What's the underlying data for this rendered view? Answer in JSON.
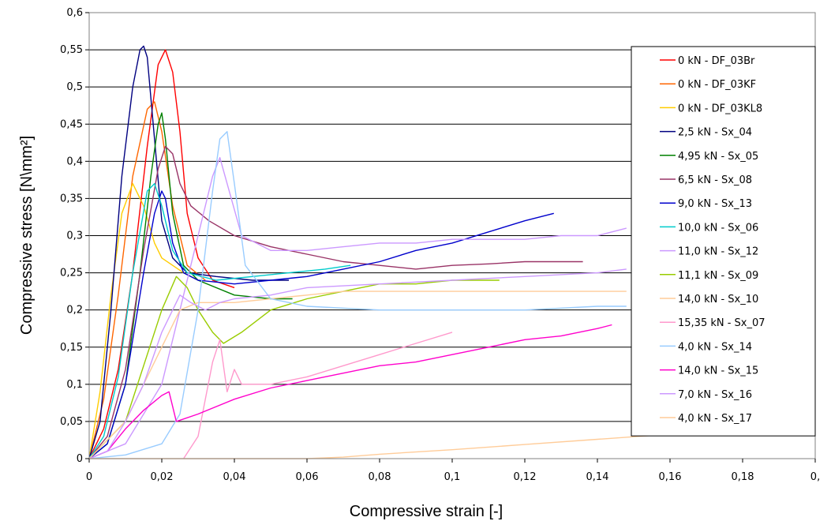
{
  "chart_data": {
    "type": "line",
    "xlabel": "Compressive strain [-]",
    "ylabel": "Compressive stress [N\\mm²]",
    "xlim": [
      0,
      0.2
    ],
    "ylim": [
      0,
      0.6
    ],
    "x_ticks": [
      "0",
      "0,02",
      "0,04",
      "0,06",
      "0,08",
      "0,1",
      "0,12",
      "0,14",
      "0,16",
      "0,18",
      "0,"
    ],
    "y_ticks": [
      "0",
      "0,05",
      "0,1",
      "0,15",
      "0,2",
      "0,25",
      "0,3",
      "0,35",
      "0,4",
      "0,45",
      "0,5",
      "0,55",
      "0,6"
    ],
    "grid": "horizontal major gridlines",
    "legend_position": "right, inside plot area",
    "series": [
      {
        "name": "0 kN - DF_03Br",
        "color": "#ff0000",
        "x": [
          0,
          0.004,
          0.008,
          0.012,
          0.016,
          0.019,
          0.021,
          0.023,
          0.025,
          0.027,
          0.03,
          0.034,
          0.04
        ],
        "y": [
          0,
          0.04,
          0.12,
          0.25,
          0.42,
          0.53,
          0.55,
          0.52,
          0.44,
          0.33,
          0.27,
          0.24,
          0.23
        ]
      },
      {
        "name": "0 kN - DF_03KF",
        "color": "#ff6600",
        "x": [
          0,
          0.004,
          0.008,
          0.012,
          0.016,
          0.018,
          0.02,
          0.023,
          0.027,
          0.032
        ],
        "y": [
          0,
          0.08,
          0.22,
          0.38,
          0.47,
          0.48,
          0.44,
          0.34,
          0.26,
          0.24
        ]
      },
      {
        "name": "0 kN - DF_03KL8",
        "color": "#ffcc00",
        "x": [
          0,
          0.003,
          0.006,
          0.009,
          0.012,
          0.015,
          0.018,
          0.02,
          0.023,
          0.026,
          0.03
        ],
        "y": [
          0,
          0.09,
          0.22,
          0.33,
          0.37,
          0.34,
          0.29,
          0.27,
          0.26,
          0.25,
          0.24
        ]
      },
      {
        "name": "2,5 kN - Sx_04",
        "color": "#000080",
        "x": [
          0,
          0.003,
          0.006,
          0.009,
          0.012,
          0.014,
          0.015,
          0.016,
          0.018,
          0.02,
          0.023,
          0.027,
          0.035,
          0.045,
          0.055
        ],
        "y": [
          0,
          0.05,
          0.2,
          0.38,
          0.5,
          0.55,
          0.555,
          0.54,
          0.43,
          0.32,
          0.27,
          0.25,
          0.245,
          0.24,
          0.24
        ]
      },
      {
        "name": "4,95 kN - Sx_05",
        "color": "#008000",
        "x": [
          0,
          0.005,
          0.01,
          0.014,
          0.017,
          0.019,
          0.02,
          0.021,
          0.023,
          0.026,
          0.03,
          0.04,
          0.05,
          0.056
        ],
        "y": [
          0,
          0.02,
          0.1,
          0.25,
          0.38,
          0.45,
          0.465,
          0.43,
          0.33,
          0.26,
          0.24,
          0.22,
          0.215,
          0.215
        ]
      },
      {
        "name": "6,5 kN - Sx_08",
        "color": "#993366",
        "x": [
          0,
          0.005,
          0.01,
          0.015,
          0.019,
          0.021,
          0.023,
          0.025,
          0.028,
          0.033,
          0.04,
          0.05,
          0.06,
          0.07,
          0.08,
          0.09,
          0.1,
          0.11,
          0.12,
          0.13,
          0.136
        ],
        "y": [
          0,
          0.03,
          0.12,
          0.28,
          0.39,
          0.42,
          0.41,
          0.37,
          0.34,
          0.32,
          0.3,
          0.285,
          0.275,
          0.265,
          0.26,
          0.255,
          0.26,
          0.262,
          0.265,
          0.265,
          0.265
        ]
      },
      {
        "name": "9,0 kN - Sx_13",
        "color": "#0000cc",
        "x": [
          0,
          0.005,
          0.01,
          0.015,
          0.018,
          0.02,
          0.021,
          0.023,
          0.026,
          0.03,
          0.04,
          0.05,
          0.06,
          0.07,
          0.08,
          0.09,
          0.1,
          0.11,
          0.12,
          0.128
        ],
        "y": [
          0,
          0.02,
          0.1,
          0.25,
          0.33,
          0.36,
          0.35,
          0.29,
          0.25,
          0.24,
          0.235,
          0.24,
          0.245,
          0.255,
          0.265,
          0.28,
          0.29,
          0.305,
          0.32,
          0.33
        ]
      },
      {
        "name": "10,0 kN - Sx_06",
        "color": "#00cccc",
        "x": [
          0,
          0.004,
          0.008,
          0.012,
          0.016,
          0.018,
          0.02,
          0.023,
          0.027,
          0.035,
          0.045,
          0.055,
          0.065,
          0.072
        ],
        "y": [
          0,
          0.03,
          0.11,
          0.25,
          0.36,
          0.37,
          0.34,
          0.28,
          0.25,
          0.24,
          0.245,
          0.25,
          0.255,
          0.26
        ]
      },
      {
        "name": "11,0 kN - Sx_12",
        "color": "#cc99ff",
        "x": [
          0,
          0.01,
          0.02,
          0.025,
          0.03,
          0.034,
          0.036,
          0.038,
          0.042,
          0.05,
          0.06,
          0.07,
          0.08,
          0.09,
          0.1,
          0.11,
          0.12,
          0.13,
          0.14,
          0.148
        ],
        "y": [
          0,
          0.02,
          0.1,
          0.2,
          0.3,
          0.38,
          0.405,
          0.37,
          0.3,
          0.28,
          0.28,
          0.285,
          0.29,
          0.29,
          0.295,
          0.295,
          0.295,
          0.3,
          0.3,
          0.31
        ]
      },
      {
        "name": "11,1 kN - Sx_09",
        "color": "#99cc00",
        "x": [
          0,
          0.01,
          0.02,
          0.024,
          0.027,
          0.03,
          0.034,
          0.037,
          0.042,
          0.05,
          0.06,
          0.07,
          0.08,
          0.09,
          0.1,
          0.113
        ],
        "y": [
          0,
          0.05,
          0.2,
          0.245,
          0.23,
          0.2,
          0.17,
          0.155,
          0.17,
          0.2,
          0.215,
          0.225,
          0.235,
          0.235,
          0.24,
          0.24
        ]
      },
      {
        "name": "14,0 kN - Sx_10",
        "color": "#ffcc99",
        "x": [
          0,
          0.01,
          0.02,
          0.025,
          0.03,
          0.04,
          0.05,
          0.06,
          0.07,
          0.08,
          0.09,
          0.1,
          0.11,
          0.12,
          0.13,
          0.14,
          0.148
        ],
        "y": [
          0,
          0.05,
          0.15,
          0.2,
          0.21,
          0.21,
          0.215,
          0.22,
          0.225,
          0.225,
          0.225,
          0.225,
          0.225,
          0.225,
          0.225,
          0.225,
          0.225
        ]
      },
      {
        "name": "15,35 kN - Sx_07",
        "color": "#ff99cc",
        "x": [
          0.026,
          0.03,
          0.034,
          0.036,
          0.038,
          0.04,
          0.042,
          0.05,
          0.06,
          0.07,
          0.08,
          0.09,
          0.1
        ],
        "y": [
          0,
          0.03,
          0.13,
          0.16,
          0.09,
          0.12,
          0.1,
          0.1,
          0.11,
          0.125,
          0.14,
          0.155,
          0.17
        ]
      },
      {
        "name": "4,0 kN - Sx_14",
        "color": "#99ccff",
        "x": [
          0,
          0.01,
          0.02,
          0.025,
          0.03,
          0.034,
          0.036,
          0.038,
          0.04,
          0.043,
          0.05,
          0.06,
          0.08,
          0.1,
          0.12,
          0.14,
          0.148
        ],
        "y": [
          0,
          0.005,
          0.02,
          0.06,
          0.2,
          0.36,
          0.43,
          0.44,
          0.37,
          0.26,
          0.215,
          0.205,
          0.2,
          0.2,
          0.2,
          0.205,
          0.205
        ]
      },
      {
        "name": "14,0 kN - Sx_15",
        "color": "#ff00cc",
        "x": [
          0,
          0.005,
          0.01,
          0.015,
          0.02,
          0.022,
          0.024,
          0.03,
          0.04,
          0.05,
          0.06,
          0.07,
          0.08,
          0.09,
          0.1,
          0.11,
          0.12,
          0.13,
          0.14,
          0.144
        ],
        "y": [
          0,
          0.01,
          0.04,
          0.065,
          0.085,
          0.09,
          0.05,
          0.06,
          0.08,
          0.095,
          0.105,
          0.115,
          0.125,
          0.13,
          0.14,
          0.15,
          0.16,
          0.165,
          0.175,
          0.18
        ]
      },
      {
        "name": "7,0 kN - Sx_16",
        "color": "#cc99ff",
        "x": [
          0,
          0.005,
          0.01,
          0.015,
          0.02,
          0.025,
          0.028,
          0.032,
          0.036,
          0.04,
          0.05,
          0.06,
          0.08,
          0.1,
          0.12,
          0.14,
          0.148
        ],
        "y": [
          0,
          0.01,
          0.05,
          0.1,
          0.17,
          0.22,
          0.21,
          0.2,
          0.21,
          0.215,
          0.22,
          0.23,
          0.235,
          0.24,
          0.245,
          0.25,
          0.255
        ]
      },
      {
        "name": "4,0 kN - Sx_17",
        "color": "#ffcc99",
        "x": [
          0,
          0.02,
          0.04,
          0.06,
          0.07,
          0.08,
          0.1,
          0.12,
          0.14,
          0.16,
          0.18,
          0.2
        ],
        "y": [
          0,
          0,
          0,
          0,
          0.002,
          0.006,
          0.012,
          0.019,
          0.026,
          0.033,
          0.04,
          0.045
        ]
      }
    ]
  }
}
